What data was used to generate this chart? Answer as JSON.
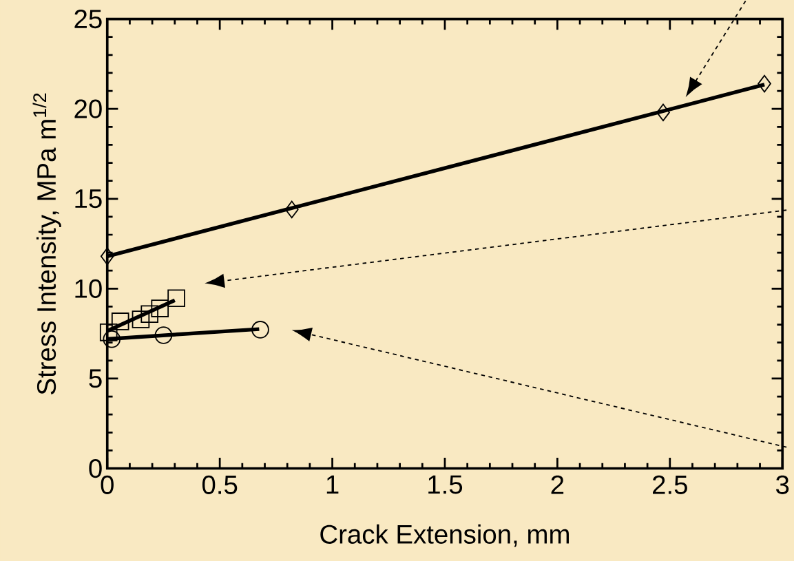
{
  "chart_data": {
    "type": "scatter",
    "xlabel": "Crack Extension, mm",
    "ylabel": "Stress Intensity, MPa m$^{1/2}$",
    "xlim": [
      0,
      3
    ],
    "ylim": [
      0,
      25
    ],
    "xticks": [
      0,
      0.5,
      1,
      1.5,
      2,
      2.5,
      3
    ],
    "yticks": [
      0,
      5,
      10,
      15,
      20,
      25
    ],
    "grid": false,
    "series": [
      {
        "marker": "diamond",
        "color": "#000000",
        "x": [
          0,
          0.82,
          2.47,
          2.92
        ],
        "values": [
          11.8,
          14.4,
          19.8,
          21.4
        ]
      },
      {
        "type": "line",
        "marker": "none",
        "color": "#000000",
        "x": [
          0,
          2.92
        ],
        "values": [
          11.8,
          21.35
        ]
      },
      {
        "marker": "square",
        "color": "#000000",
        "x": [
          0.006,
          0.058,
          0.149,
          0.188,
          0.234,
          0.307
        ],
        "values": [
          7.57,
          8.18,
          8.29,
          8.59,
          8.9,
          9.47
        ]
      },
      {
        "type": "line",
        "marker": "none",
        "color": "#000000",
        "x": [
          0,
          0.3
        ],
        "values": [
          7.65,
          9.35
        ]
      },
      {
        "marker": "circle",
        "color": "#000000",
        "x": [
          0.02,
          0.25,
          0.68
        ],
        "values": [
          7.19,
          7.41,
          7.72
        ]
      },
      {
        "type": "line",
        "marker": "none",
        "color": "#000000",
        "x": [
          0,
          0.675
        ],
        "values": [
          7.2,
          7.75
        ]
      }
    ]
  }
}
